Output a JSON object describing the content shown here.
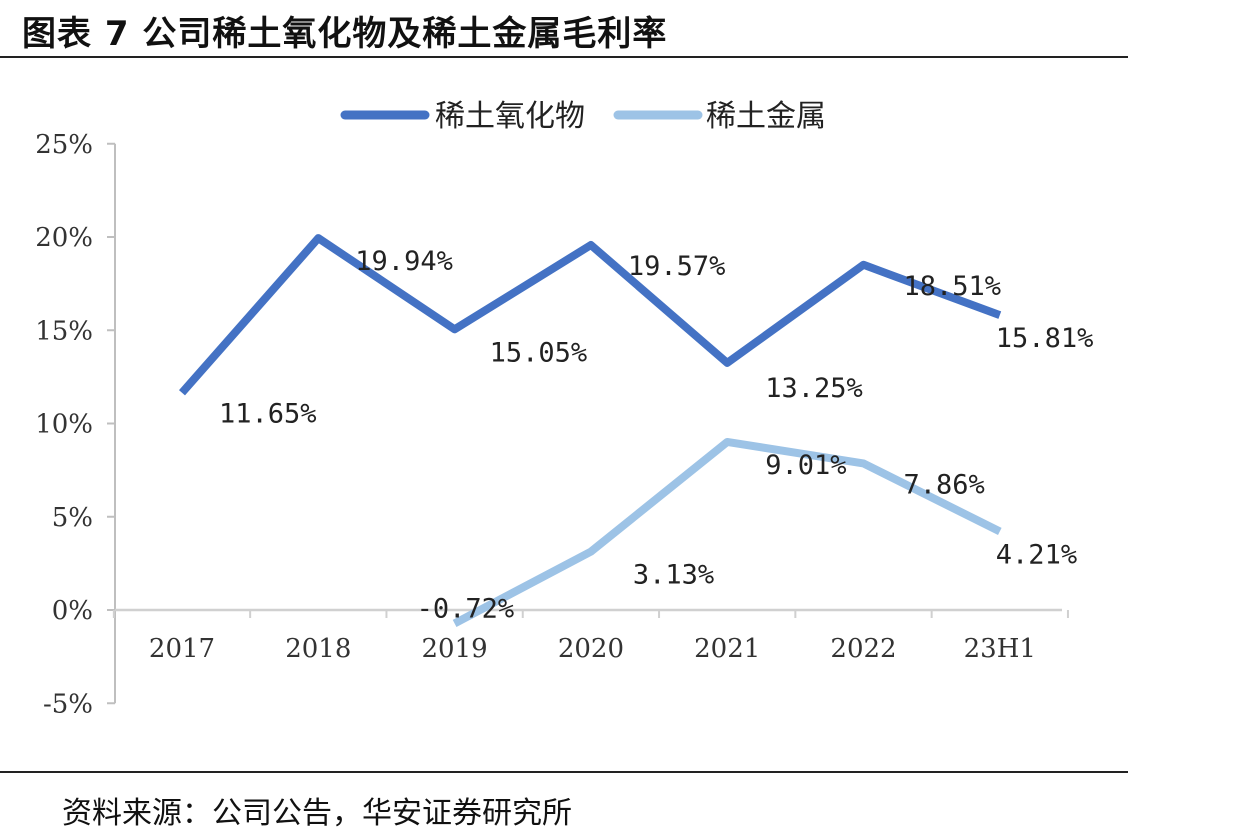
{
  "header": {
    "title": "图表 7  公司稀土氧化物及稀土金属毛利率"
  },
  "footer": {
    "source": "资料来源：公司公告，华安证券研究所"
  },
  "chart_data": {
    "type": "line",
    "title": "",
    "xlabel": "",
    "ylabel": "",
    "categories": [
      "2017",
      "2018",
      "2019",
      "2020",
      "2021",
      "2022",
      "23H1"
    ],
    "ylim": [
      -5,
      25
    ],
    "yticks": [
      25,
      20,
      15,
      10,
      5,
      0,
      -5
    ],
    "ytick_labels": [
      "25%",
      "20%",
      "15%",
      "10%",
      "5%",
      "0%",
      "-5%"
    ],
    "legend_position": "top-center",
    "grid": false,
    "series": [
      {
        "name": "稀土氧化物",
        "color": "#4472C4",
        "values": [
          11.65,
          19.94,
          15.05,
          19.57,
          13.25,
          18.51,
          15.81
        ],
        "labels": [
          "11.65%",
          "19.94%",
          "15.05%",
          "19.57%",
          "13.25%",
          "18.51%",
          "15.81%"
        ]
      },
      {
        "name": "稀土金属",
        "color": "#9DC3E6",
        "values": [
          null,
          null,
          -0.72,
          3.13,
          9.01,
          7.86,
          4.21
        ],
        "labels": [
          null,
          null,
          "-0.72%",
          "3.13%",
          "9.01%",
          "7.86%",
          "4.21%"
        ]
      }
    ]
  }
}
